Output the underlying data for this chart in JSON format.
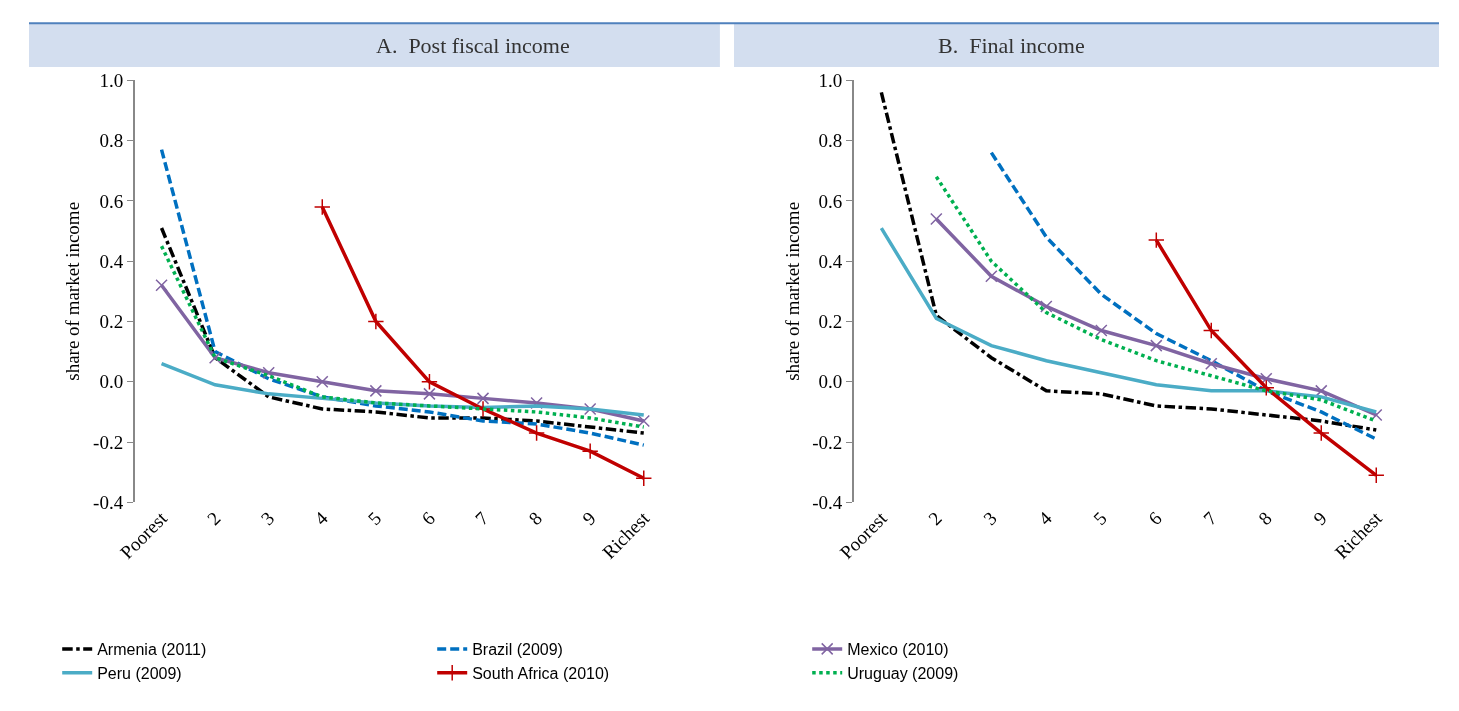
{
  "chart_data": [
    {
      "type": "line",
      "title": "A.  Post fiscal income",
      "ylabel": "share of market income",
      "categories": [
        "Poorest",
        "2",
        "3",
        "4",
        "5",
        "6",
        "7",
        "8",
        "9",
        "Richest"
      ],
      "ylim": [
        -0.4,
        1.0
      ],
      "yticks": [
        {
          "value": -0.4,
          "label": "-0.4"
        },
        {
          "value": -0.2,
          "label": "-0.2"
        },
        {
          "value": 0,
          "label": "0.0"
        },
        {
          "value": 0.2,
          "label": "0.2"
        },
        {
          "value": 0.4,
          "label": "0.4"
        },
        {
          "value": 0.6,
          "label": "0.6"
        },
        {
          "value": 0.8,
          "label": "0.8"
        },
        {
          "value": 1.0,
          "label": "1.0"
        }
      ],
      "legend": "bottom",
      "series": [
        {
          "name": "Armenia (2011)",
          "color": "#000000",
          "line_style": "dashdot",
          "values": [
            0.51,
            0.08,
            -0.05,
            -0.09,
            -0.1,
            -0.12,
            -0.12,
            -0.13,
            -0.15,
            -0.17
          ]
        },
        {
          "name": "Brazil (2009)",
          "color": "#0070c0",
          "line_style": "dashed",
          "values": [
            0.77,
            0.1,
            0.01,
            -0.05,
            -0.08,
            -0.1,
            -0.13,
            -0.14,
            -0.17,
            -0.21
          ]
        },
        {
          "name": "Mexico (2010)",
          "color": "#8064a2",
          "line_style": "solid",
          "marker": "x",
          "values": [
            0.32,
            0.08,
            0.03,
            0.0,
            -0.03,
            -0.04,
            -0.055,
            -0.07,
            -0.09,
            -0.13
          ]
        },
        {
          "name": "Peru (2009)",
          "color": "#4bacc6",
          "line_style": "solid",
          "values": [
            0.06,
            -0.01,
            -0.04,
            -0.055,
            -0.07,
            -0.08,
            -0.085,
            -0.08,
            -0.09,
            -0.11
          ]
        },
        {
          "name": "South Africa (2010)",
          "color": "#c00000",
          "line_style": "solid",
          "marker": "cross",
          "values": [
            null,
            null,
            null,
            0.58,
            0.2,
            0.0,
            -0.09,
            -0.17,
            -0.23,
            -0.32
          ]
        },
        {
          "name": "Uruguay (2009)",
          "color": "#00b050",
          "line_style": "dotted",
          "values": [
            0.45,
            0.08,
            0.02,
            -0.05,
            -0.07,
            -0.08,
            -0.09,
            -0.1,
            -0.12,
            -0.15
          ]
        }
      ]
    },
    {
      "type": "line",
      "title": "B.  Final income",
      "ylabel": "share of market income",
      "categories": [
        "Poorest",
        "2",
        "3",
        "4",
        "5",
        "6",
        "7",
        "8",
        "9",
        "Richest"
      ],
      "ylim": [
        -0.4,
        1.0
      ],
      "yticks": [
        {
          "value": -0.4,
          "label": "-0.4"
        },
        {
          "value": -0.2,
          "label": "-0.2"
        },
        {
          "value": 0,
          "label": "0.0"
        },
        {
          "value": 0.2,
          "label": "0.2"
        },
        {
          "value": 0.4,
          "label": "0.4"
        },
        {
          "value": 0.6,
          "label": "0.6"
        },
        {
          "value": 0.8,
          "label": "0.8"
        },
        {
          "value": 1.0,
          "label": "1.0"
        }
      ],
      "series": [
        {
          "color": "#000000",
          "line_style": "dashdot",
          "values": [
            0.96,
            0.22,
            0.08,
            -0.03,
            -0.04,
            -0.08,
            -0.09,
            -0.11,
            -0.13,
            -0.16
          ]
        },
        {
          "color": "#0070c0",
          "line_style": "dashed",
          "values": [
            null,
            null,
            0.76,
            0.48,
            0.29,
            0.16,
            0.07,
            -0.03,
            -0.1,
            -0.19
          ]
        },
        {
          "color": "#8064a2",
          "line_style": "solid",
          "marker": "x",
          "values": [
            null,
            0.54,
            0.35,
            0.25,
            0.17,
            0.12,
            0.06,
            0.01,
            -0.03,
            -0.11
          ]
        },
        {
          "color": "#4bacc6",
          "line_style": "solid",
          "values": [
            0.51,
            0.21,
            0.12,
            0.07,
            0.03,
            -0.01,
            -0.03,
            -0.03,
            -0.05,
            -0.1
          ]
        },
        {
          "color": "#c00000",
          "line_style": "solid",
          "marker": "cross",
          "values": [
            null,
            null,
            null,
            null,
            null,
            0.47,
            0.17,
            -0.02,
            -0.17,
            -0.31
          ]
        },
        {
          "color": "#00b050",
          "line_style": "dotted",
          "values": [
            null,
            0.68,
            0.4,
            0.23,
            0.14,
            0.07,
            0.02,
            -0.03,
            -0.06,
            -0.13
          ]
        }
      ]
    }
  ]
}
